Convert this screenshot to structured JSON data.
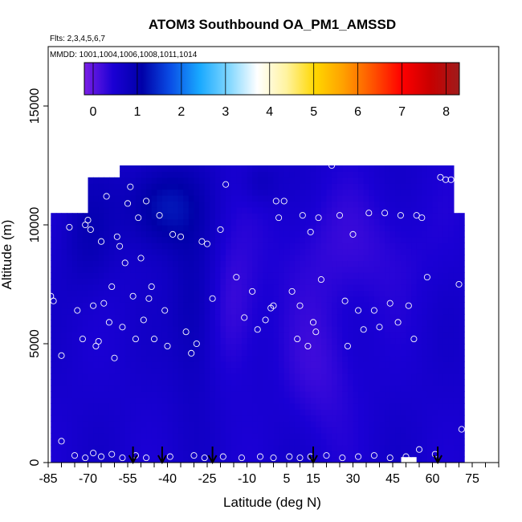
{
  "chart_data": {
    "type": "heatmap",
    "title": "ATOM3 Southbound OA_PM1_AMSSD",
    "flights_label": "Flts: 2,3,4,5,6,7",
    "dates_label": "MMDD: 1001,1004,1006,1008,1011,1014",
    "xlabel": "Latitude (deg N)",
    "ylabel": "Altitude (m)",
    "xlim": [
      -85,
      85
    ],
    "ylim": [
      0,
      17500
    ],
    "x_ticks": [
      -85,
      -70,
      -55,
      -40,
      -25,
      -10,
      5,
      15,
      30,
      45,
      60,
      75
    ],
    "y_ticks": [
      0,
      5000,
      10000,
      15000
    ],
    "colorbar": {
      "min": -0.2,
      "max": 8.3,
      "ticks": [
        0,
        1,
        2,
        3,
        4,
        5,
        6,
        7,
        8
      ],
      "stops": [
        "#7b1fe6",
        "#1a00d4",
        "#0000a8",
        "#0a4fe6",
        "#19a9ff",
        "#7fd6ff",
        "#ffffff",
        "#fff3a0",
        "#ffd700",
        "#ff9f00",
        "#ff5300",
        "#ff0000",
        "#c80000",
        "#9f1b1b"
      ]
    },
    "flight_markers_latitude": [
      -53,
      -42,
      -23,
      15,
      62
    ],
    "field": {
      "description": "interpolated concentration, mostly 0-1.3",
      "cells_lat": [
        -82,
        -78,
        -74,
        -70,
        -66,
        -62,
        -58,
        -54,
        -50,
        -46,
        -42,
        -38,
        -34,
        -30,
        -26,
        -22,
        -18,
        -14,
        -10,
        -6,
        -2,
        2,
        6,
        10,
        14,
        18,
        22,
        26,
        30,
        34,
        38,
        42,
        46,
        50,
        54,
        58,
        62,
        66,
        70
      ],
      "alt_levels": [
        500,
        1500,
        2500,
        3500,
        4500,
        5500,
        6500,
        7500,
        8500,
        9500,
        10500,
        11500,
        12200
      ]
    },
    "sample_points": [
      {
        "lat": -84,
        "alt": 7000
      },
      {
        "lat": -83,
        "alt": 6800
      },
      {
        "lat": -80,
        "alt": 4500
      },
      {
        "lat": -77,
        "alt": 9900
      },
      {
        "lat": -74,
        "alt": 6400
      },
      {
        "lat": -72,
        "alt": 5200
      },
      {
        "lat": -71,
        "alt": 10000
      },
      {
        "lat": -70,
        "alt": 10200
      },
      {
        "lat": -69,
        "alt": 9800
      },
      {
        "lat": -68,
        "alt": 6600
      },
      {
        "lat": -67,
        "alt": 4900
      },
      {
        "lat": -66,
        "alt": 5100
      },
      {
        "lat": -65,
        "alt": 9300
      },
      {
        "lat": -64,
        "alt": 6700
      },
      {
        "lat": -63,
        "alt": 11200
      },
      {
        "lat": -62,
        "alt": 5900
      },
      {
        "lat": -61,
        "alt": 7400
      },
      {
        "lat": -60,
        "alt": 4400
      },
      {
        "lat": -59,
        "alt": 9500
      },
      {
        "lat": -58,
        "alt": 9100
      },
      {
        "lat": -57,
        "alt": 5700
      },
      {
        "lat": -56,
        "alt": 8400
      },
      {
        "lat": -55,
        "alt": 10900
      },
      {
        "lat": -54,
        "alt": 11600
      },
      {
        "lat": -53,
        "alt": 7000
      },
      {
        "lat": -52,
        "alt": 5200
      },
      {
        "lat": -51,
        "alt": 10300
      },
      {
        "lat": -50,
        "alt": 8600
      },
      {
        "lat": -49,
        "alt": 6000
      },
      {
        "lat": -48,
        "alt": 11000
      },
      {
        "lat": -47,
        "alt": 6900
      },
      {
        "lat": -46,
        "alt": 7400
      },
      {
        "lat": -45,
        "alt": 5200
      },
      {
        "lat": -43,
        "alt": 10400
      },
      {
        "lat": -41,
        "alt": 6400
      },
      {
        "lat": -40,
        "alt": 4900
      },
      {
        "lat": -38,
        "alt": 9600
      },
      {
        "lat": -35,
        "alt": 9500
      },
      {
        "lat": -33,
        "alt": 5500
      },
      {
        "lat": -31,
        "alt": 4600
      },
      {
        "lat": -29,
        "alt": 5000
      },
      {
        "lat": -27,
        "alt": 9300
      },
      {
        "lat": -25,
        "alt": 9200
      },
      {
        "lat": -23,
        "alt": 6900
      },
      {
        "lat": -20,
        "alt": 9800
      },
      {
        "lat": -18,
        "alt": 11700
      },
      {
        "lat": -14,
        "alt": 7800
      },
      {
        "lat": -11,
        "alt": 6100
      },
      {
        "lat": -8,
        "alt": 7200
      },
      {
        "lat": -6,
        "alt": 5600
      },
      {
        "lat": -3,
        "alt": 6000
      },
      {
        "lat": -1,
        "alt": 6500
      },
      {
        "lat": 0,
        "alt": 6600
      },
      {
        "lat": 1,
        "alt": 11000
      },
      {
        "lat": 2,
        "alt": 10300
      },
      {
        "lat": 4,
        "alt": 11000
      },
      {
        "lat": 7,
        "alt": 7200
      },
      {
        "lat": 9,
        "alt": 5200
      },
      {
        "lat": 10,
        "alt": 6600
      },
      {
        "lat": 11,
        "alt": 10400
      },
      {
        "lat": 13,
        "alt": 4900
      },
      {
        "lat": 14,
        "alt": 9700
      },
      {
        "lat": 15,
        "alt": 5900
      },
      {
        "lat": 16,
        "alt": 5500
      },
      {
        "lat": 17,
        "alt": 10300
      },
      {
        "lat": 18,
        "alt": 7700
      },
      {
        "lat": 22,
        "alt": 12500
      },
      {
        "lat": 25,
        "alt": 10400
      },
      {
        "lat": 27,
        "alt": 6800
      },
      {
        "lat": 28,
        "alt": 4900
      },
      {
        "lat": 30,
        "alt": 9600
      },
      {
        "lat": 32,
        "alt": 6400
      },
      {
        "lat": 34,
        "alt": 5600
      },
      {
        "lat": 36,
        "alt": 10500
      },
      {
        "lat": 38,
        "alt": 6400
      },
      {
        "lat": 40,
        "alt": 5700
      },
      {
        "lat": 42,
        "alt": 10500
      },
      {
        "lat": 44,
        "alt": 6700
      },
      {
        "lat": 47,
        "alt": 5900
      },
      {
        "lat": 48,
        "alt": 10400
      },
      {
        "lat": 51,
        "alt": 6600
      },
      {
        "lat": 53,
        "alt": 5200
      },
      {
        "lat": 54,
        "alt": 10400
      },
      {
        "lat": 56,
        "alt": 10300
      },
      {
        "lat": 58,
        "alt": 7800
      },
      {
        "lat": 63,
        "alt": 12000
      },
      {
        "lat": 65,
        "alt": 11900
      },
      {
        "lat": 67,
        "alt": 11900
      },
      {
        "lat": 70,
        "alt": 7500
      },
      {
        "lat": 71,
        "alt": 1400
      },
      {
        "lat": -75,
        "alt": 300
      },
      {
        "lat": -71,
        "alt": 200
      },
      {
        "lat": -68,
        "alt": 400
      },
      {
        "lat": -65,
        "alt": 250
      },
      {
        "lat": -61,
        "alt": 350
      },
      {
        "lat": -57,
        "alt": 200
      },
      {
        "lat": -52,
        "alt": 300
      },
      {
        "lat": -48,
        "alt": 200
      },
      {
        "lat": -39,
        "alt": 250
      },
      {
        "lat": -30,
        "alt": 300
      },
      {
        "lat": -26,
        "alt": 200
      },
      {
        "lat": -19,
        "alt": 250
      },
      {
        "lat": -12,
        "alt": 200
      },
      {
        "lat": -5,
        "alt": 250
      },
      {
        "lat": 0,
        "alt": 200
      },
      {
        "lat": 6,
        "alt": 250
      },
      {
        "lat": 10,
        "alt": 200
      },
      {
        "lat": 14,
        "alt": 250
      },
      {
        "lat": 20,
        "alt": 300
      },
      {
        "lat": 26,
        "alt": 200
      },
      {
        "lat": 32,
        "alt": 250
      },
      {
        "lat": 38,
        "alt": 300
      },
      {
        "lat": 44,
        "alt": 200
      },
      {
        "lat": 50,
        "alt": 250
      },
      {
        "lat": 55,
        "alt": 550
      },
      {
        "lat": 61,
        "alt": 350
      },
      {
        "lat": -80,
        "alt": 900
      }
    ]
  }
}
